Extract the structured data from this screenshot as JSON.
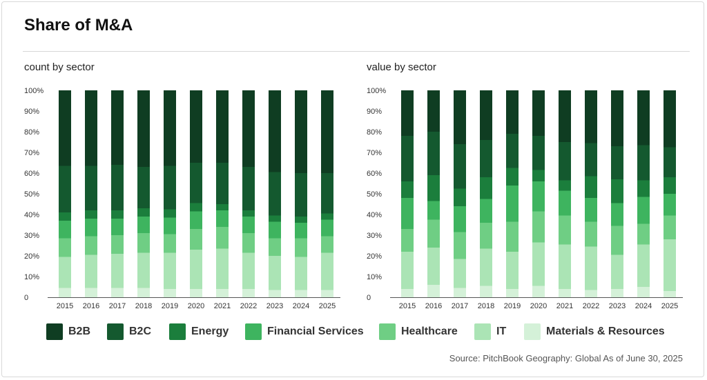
{
  "header": {
    "title": "Share of M&A"
  },
  "source": "Source: PitchBook Geography: Global As of June 30, 2025",
  "colors": {
    "B2B": "#0f3d22",
    "B2C": "#14592f",
    "Energy": "#1b7e3c",
    "Financial Services": "#3eb45f",
    "Healthcare": "#6fce84",
    "IT": "#abe4b5",
    "Materials & Resources": "#d4f1d8"
  },
  "legend": [
    {
      "label": "B2B",
      "color": "#0f3d22"
    },
    {
      "label": "B2C",
      "color": "#14592f"
    },
    {
      "label": "Energy",
      "color": "#1b7e3c"
    },
    {
      "label": "Financial Services",
      "color": "#3eb45f"
    },
    {
      "label": "Healthcare",
      "color": "#6fce84"
    },
    {
      "label": "IT",
      "color": "#abe4b5"
    },
    {
      "label": "Materials & Resources",
      "color": "#d4f1d8"
    }
  ],
  "chart_data": [
    {
      "type": "bar",
      "stacked": true,
      "title": "count by sector",
      "categories": [
        "2015",
        "2016",
        "2017",
        "2018",
        "2019",
        "2020",
        "2021",
        "2022",
        "2023",
        "2024",
        "2025"
      ],
      "ylim": [
        0,
        100
      ],
      "yticks": [
        "0",
        "10%",
        "20%",
        "30%",
        "40%",
        "50%",
        "60%",
        "70%",
        "80%",
        "90%",
        "100%"
      ],
      "grid": false,
      "legend": "bottom",
      "series": [
        {
          "name": "Materials & Resources",
          "values": [
            4.5,
            4.5,
            4.5,
            4.5,
            4,
            4,
            4,
            4,
            3.5,
            3.5,
            3.5
          ]
        },
        {
          "name": "IT",
          "values": [
            15,
            16,
            16.5,
            17,
            17.5,
            19,
            19.5,
            17.5,
            16.5,
            16,
            18
          ]
        },
        {
          "name": "Healthcare",
          "values": [
            9,
            9,
            9,
            9.5,
            9,
            10,
            10.5,
            9.5,
            8.5,
            9,
            8
          ]
        },
        {
          "name": "Financial Services",
          "values": [
            8.5,
            8.5,
            8,
            8,
            8,
            8.5,
            8,
            8,
            8,
            7.5,
            8
          ]
        },
        {
          "name": "Energy",
          "values": [
            4,
            4,
            4,
            4,
            4,
            4,
            3,
            3,
            3,
            3,
            3
          ]
        },
        {
          "name": "B2C",
          "values": [
            22.5,
            21.5,
            22,
            20,
            21,
            19.5,
            20,
            21,
            21,
            21,
            19.5
          ]
        },
        {
          "name": "B2B",
          "values": [
            36.5,
            36.5,
            36,
            37,
            36.5,
            35,
            35,
            37,
            39.5,
            40,
            40
          ]
        }
      ]
    },
    {
      "type": "bar",
      "stacked": true,
      "title": "value by sector",
      "categories": [
        "2015",
        "2016",
        "2017",
        "2018",
        "2019",
        "2020",
        "2021",
        "2022",
        "2023",
        "2024",
        "2025"
      ],
      "ylim": [
        0,
        100
      ],
      "yticks": [
        "0",
        "10%",
        "20%",
        "30%",
        "40%",
        "50%",
        "60%",
        "70%",
        "80%",
        "90%",
        "100%"
      ],
      "grid": false,
      "legend": "bottom",
      "series": [
        {
          "name": "Materials & Resources",
          "values": [
            4,
            6,
            4.5,
            5.5,
            4,
            5.5,
            4,
            3.5,
            4,
            5,
            3
          ]
        },
        {
          "name": "IT",
          "values": [
            18,
            18,
            14,
            18,
            18,
            21,
            21.5,
            21,
            16.5,
            20.5,
            25
          ]
        },
        {
          "name": "Healthcare",
          "values": [
            11,
            13.5,
            13,
            12.5,
            14.5,
            15,
            14,
            12,
            14,
            10,
            11.5
          ]
        },
        {
          "name": "Financial Services",
          "values": [
            15,
            9,
            12.5,
            11.5,
            17.5,
            14.5,
            12,
            11.5,
            11,
            13,
            10.5
          ]
        },
        {
          "name": "Energy",
          "values": [
            8,
            12.5,
            8.5,
            10.5,
            8.5,
            5.5,
            5,
            10.5,
            11.5,
            8,
            8
          ]
        },
        {
          "name": "B2C",
          "values": [
            22,
            21,
            21.5,
            18,
            16.5,
            16.5,
            18.5,
            16,
            16,
            17,
            14.5
          ]
        },
        {
          "name": "B2B",
          "values": [
            22,
            20,
            26,
            24,
            21,
            22,
            25,
            25.5,
            27,
            26.5,
            27.5
          ]
        }
      ]
    }
  ]
}
